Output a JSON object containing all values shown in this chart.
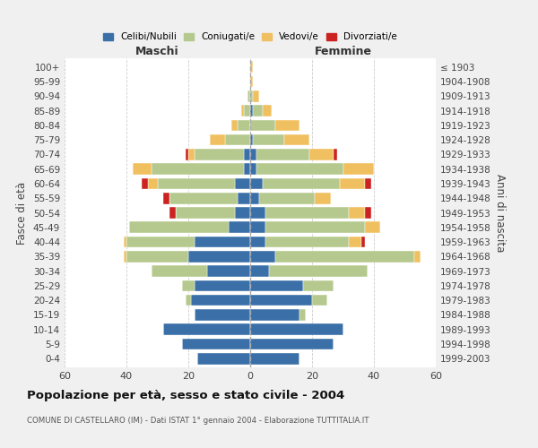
{
  "age_groups": [
    "0-4",
    "5-9",
    "10-14",
    "15-19",
    "20-24",
    "25-29",
    "30-34",
    "35-39",
    "40-44",
    "45-49",
    "50-54",
    "55-59",
    "60-64",
    "65-69",
    "70-74",
    "75-79",
    "80-84",
    "85-89",
    "90-94",
    "95-99",
    "100+"
  ],
  "birth_years": [
    "1999-2003",
    "1994-1998",
    "1989-1993",
    "1984-1988",
    "1979-1983",
    "1974-1978",
    "1969-1973",
    "1964-1968",
    "1959-1963",
    "1954-1958",
    "1949-1953",
    "1944-1948",
    "1939-1943",
    "1934-1938",
    "1929-1933",
    "1924-1928",
    "1919-1923",
    "1914-1918",
    "1909-1913",
    "1904-1908",
    "≤ 1903"
  ],
  "colors": {
    "celibi": "#3a6fa8",
    "coniugati": "#b5c98e",
    "vedovi": "#f0c060",
    "divorziati": "#cc2222"
  },
  "maschi": {
    "celibi": [
      17,
      22,
      28,
      18,
      19,
      18,
      14,
      20,
      18,
      7,
      5,
      4,
      5,
      2,
      2,
      0,
      0,
      0,
      0,
      0,
      0
    ],
    "coniugati": [
      0,
      0,
      0,
      0,
      2,
      4,
      18,
      20,
      22,
      32,
      19,
      22,
      25,
      30,
      16,
      8,
      4,
      2,
      1,
      0,
      0
    ],
    "vedovi": [
      0,
      0,
      0,
      0,
      0,
      0,
      0,
      1,
      1,
      0,
      0,
      0,
      3,
      6,
      2,
      5,
      2,
      1,
      0,
      0,
      0
    ],
    "divorziati": [
      0,
      0,
      0,
      0,
      0,
      0,
      0,
      0,
      0,
      0,
      2,
      2,
      2,
      0,
      1,
      0,
      0,
      0,
      0,
      0,
      0
    ]
  },
  "femmine": {
    "celibi": [
      16,
      27,
      30,
      16,
      20,
      17,
      6,
      8,
      5,
      5,
      5,
      3,
      4,
      2,
      2,
      1,
      0,
      1,
      0,
      0,
      0
    ],
    "coniugati": [
      0,
      0,
      0,
      2,
      5,
      10,
      32,
      45,
      27,
      32,
      27,
      18,
      25,
      28,
      17,
      10,
      8,
      3,
      1,
      0,
      0
    ],
    "vedovi": [
      0,
      0,
      0,
      0,
      0,
      0,
      0,
      2,
      4,
      5,
      5,
      5,
      8,
      10,
      8,
      8,
      8,
      3,
      2,
      1,
      1
    ],
    "divorziati": [
      0,
      0,
      0,
      0,
      0,
      0,
      0,
      0,
      1,
      0,
      2,
      0,
      2,
      0,
      1,
      0,
      0,
      0,
      0,
      0,
      0
    ]
  },
  "xlim": 60,
  "title": "Popolazione per età, sesso e stato civile - 2004",
  "subtitle": "COMUNE DI CASTELLARO (IM) - Dati ISTAT 1° gennaio 2004 - Elaborazione TUTTITALIA.IT",
  "ylabel": "Fasce di età",
  "ylabel_right": "Anni di nascita",
  "xlabel_maschi": "Maschi",
  "xlabel_femmine": "Femmine",
  "legend_labels": [
    "Celibi/Nubili",
    "Coniugati/e",
    "Vedovi/e",
    "Divorziati/e"
  ],
  "bg_color": "#f0f0f0",
  "plot_bg_color": "#ffffff",
  "maschi_label_color": "#333333",
  "femmine_label_color": "#333333"
}
